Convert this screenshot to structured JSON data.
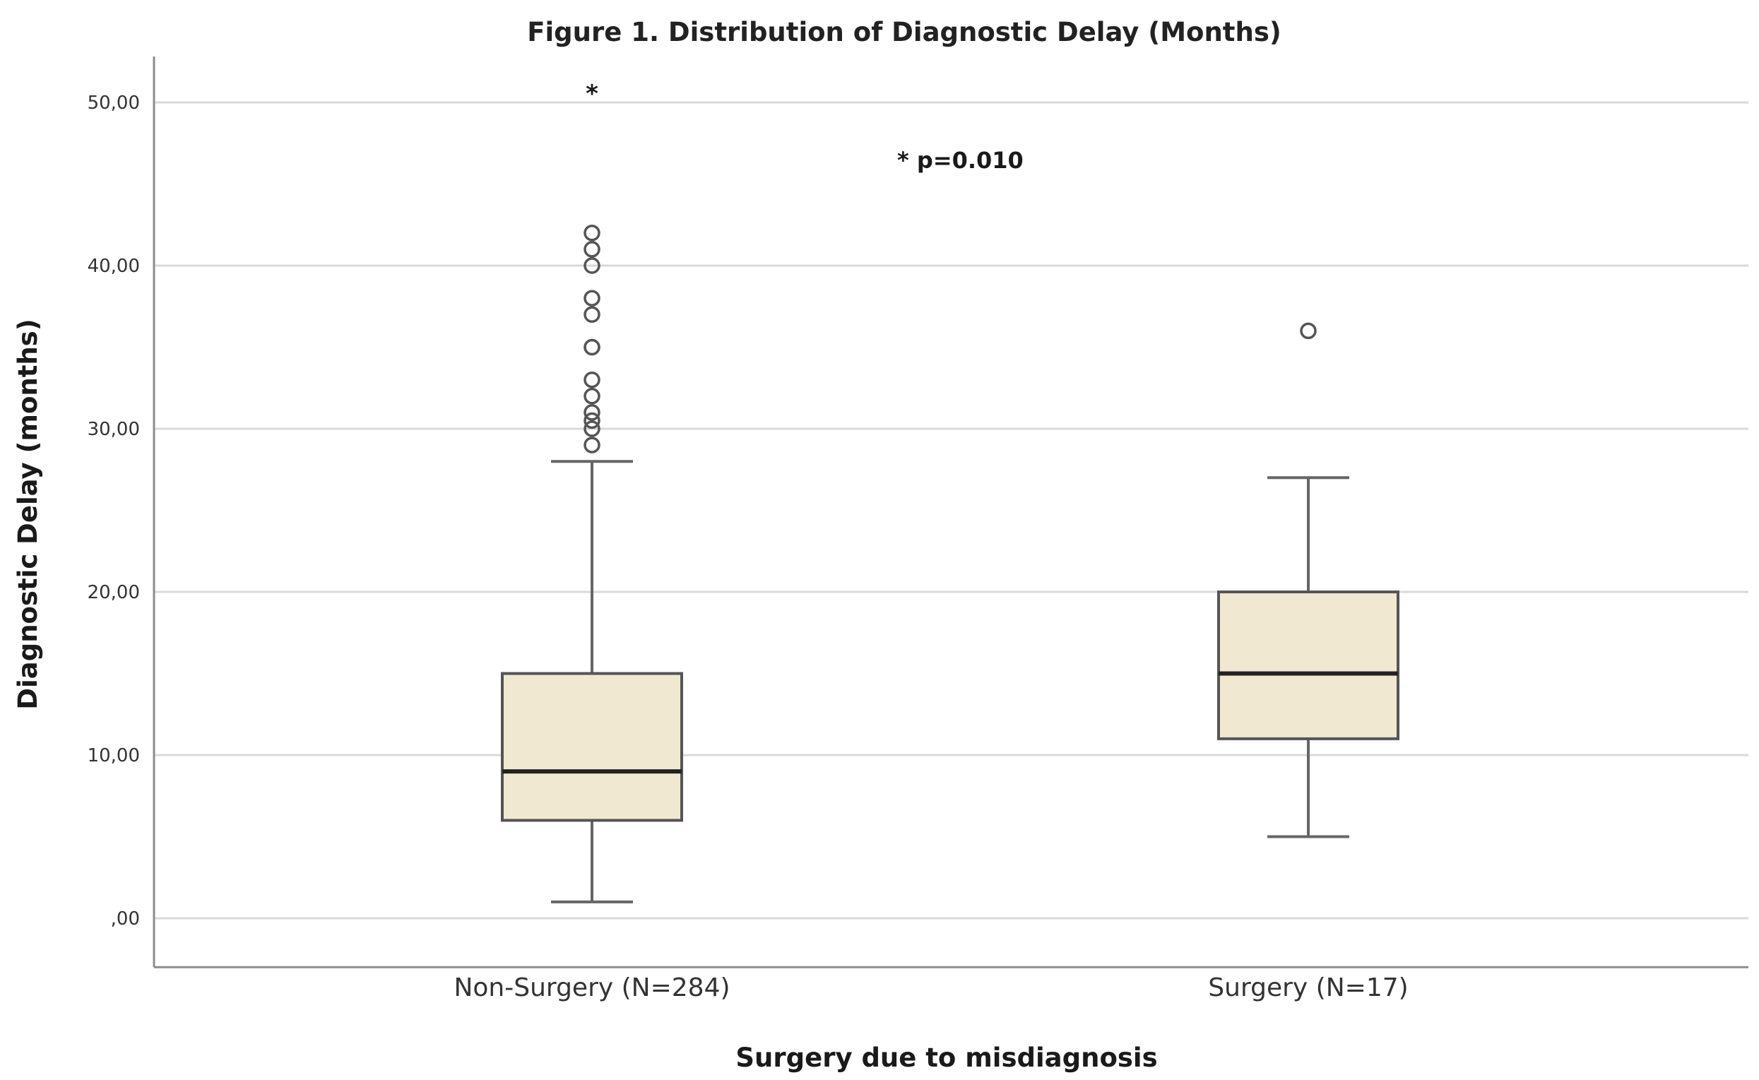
{
  "chart_data": {
    "type": "boxplot",
    "title": "Figure 1. Distribution of Diagnostic Delay (Months)",
    "xlabel": "Surgery due to misdiagnosis",
    "ylabel": "Diagnostic Delay (months)",
    "ylim": [
      -3,
      55
    ],
    "yticks": [
      0,
      10,
      20,
      30,
      40,
      50
    ],
    "ytick_labels": [
      ",00",
      "10,00",
      "20,00",
      "30,00",
      "40,00",
      "50,00"
    ],
    "grid": true,
    "annotation": "* p=0.010",
    "extreme_marker": "*",
    "groups": [
      {
        "name": "Non-Surgery (N=284)",
        "whisker_low": 1,
        "q1": 6,
        "median": 9,
        "q3": 15,
        "whisker_high": 28,
        "outliers": [
          29,
          30,
          30.5,
          31,
          32,
          33,
          35,
          35,
          37,
          38,
          40,
          41,
          42
        ],
        "extremes": [
          51
        ]
      },
      {
        "name": "Surgery (N=17)",
        "whisker_low": 5,
        "q1": 11,
        "median": 15,
        "q3": 20,
        "whisker_high": 27,
        "outliers": [
          36
        ],
        "extremes": []
      }
    ]
  }
}
